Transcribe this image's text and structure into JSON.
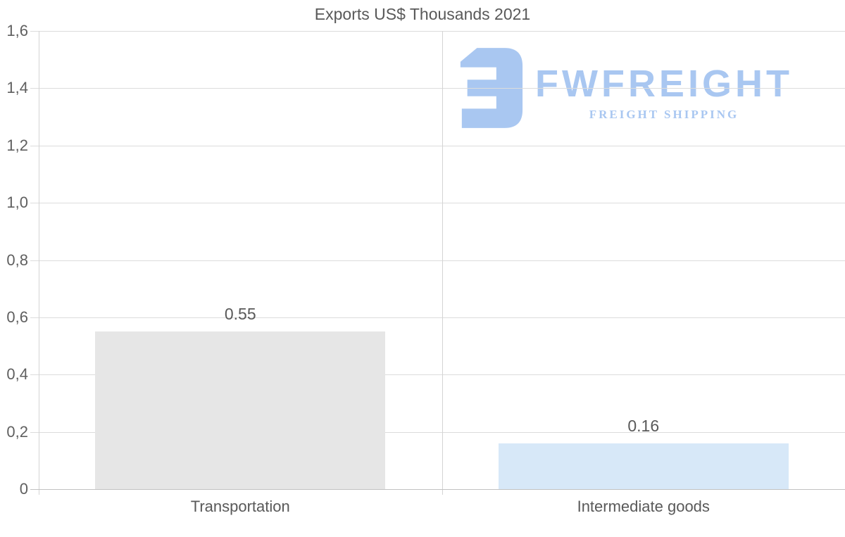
{
  "title": "Exports US$ Thousands 2021",
  "logo": {
    "brand": "FWFREIGHT",
    "tagline": "FREIGHT SHIPPING",
    "color": "#a9c7f1"
  },
  "colors": {
    "text": "#595959",
    "grid": "#dcdcdc",
    "baseline": "#c2c2c2",
    "axis_line": "#d4d4d4",
    "bar_transportation": "#e6e6e6",
    "bar_intermediate_goods": "#d7e8f8"
  },
  "chart_data": {
    "type": "bar",
    "title": "Exports US$ Thousands 2021",
    "categories": [
      "Transportation",
      "Intermediate goods"
    ],
    "values": [
      0.55,
      0.16
    ],
    "value_labels": [
      "0.55",
      "0.16"
    ],
    "bar_colors": [
      "#e6e6e6",
      "#d7e8f8"
    ],
    "xlabel": "",
    "ylabel": "",
    "ylim": [
      0,
      1.6
    ],
    "ytick_interval": 0.2,
    "ytick_labels": [
      "0",
      "0,2",
      "0,4",
      "0,6",
      "0,8",
      "1,0",
      "1,2",
      "1,4",
      "1,6"
    ],
    "decimal_separator_axis": ",",
    "decimal_separator_labels": ".",
    "grid": "horizontal gridlines + vertical category separator",
    "legend": "none",
    "watermark": "FWFREIGHT FREIGHT SHIPPING"
  }
}
